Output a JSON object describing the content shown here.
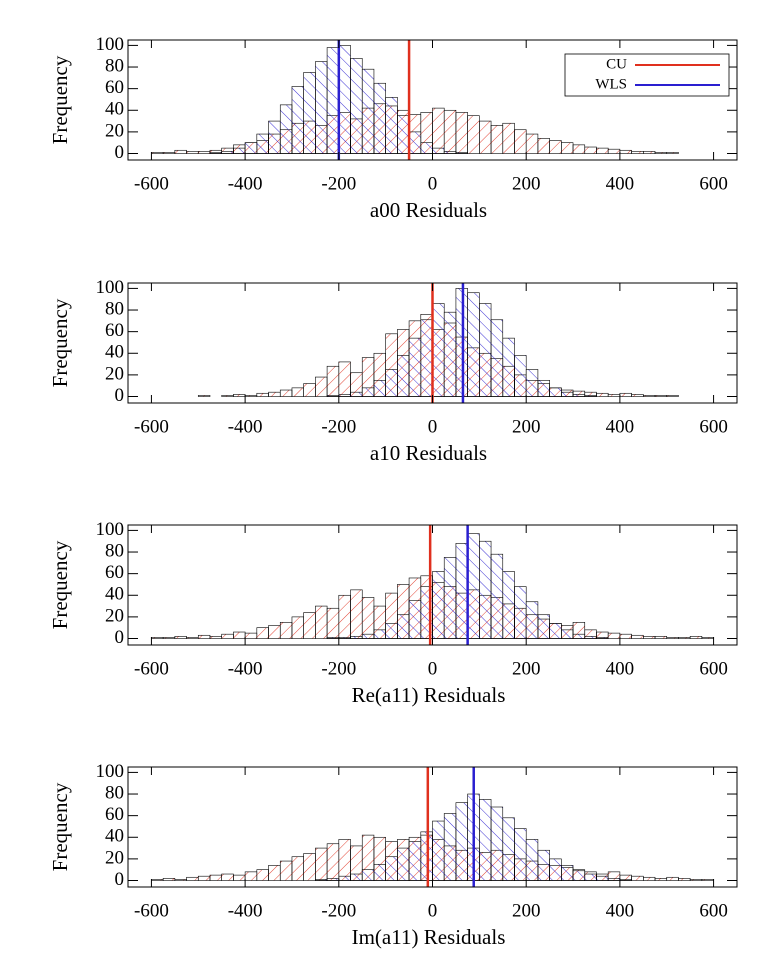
{
  "chart_data": [
    {
      "type": "histogram",
      "xlabel": "a00 Residuals",
      "ylabel": "Frequency",
      "bins": [
        -650,
        -625,
        -600,
        -575,
        -550,
        -525,
        -500,
        -475,
        -450,
        -425,
        -400,
        -375,
        -350,
        -325,
        -300,
        -275,
        -250,
        -225,
        -200,
        -175,
        -150,
        -125,
        -100,
        -75,
        -50,
        -25,
        0,
        25,
        50,
        75,
        100,
        125,
        150,
        175,
        200,
        225,
        250,
        275,
        300,
        325,
        350,
        375,
        400,
        425,
        450,
        475,
        500,
        525,
        550,
        575,
        600,
        625,
        650
      ],
      "series": [
        {
          "name": "CU",
          "color": "#e0301e",
          "mean": -50,
          "values": [
            0,
            0,
            1,
            1,
            3,
            2,
            2,
            3,
            5,
            8,
            10,
            12,
            18,
            22,
            28,
            30,
            26,
            35,
            38,
            32,
            42,
            46,
            44,
            40,
            36,
            38,
            42,
            40,
            38,
            35,
            30,
            26,
            28,
            22,
            18,
            14,
            12,
            10,
            8,
            6,
            5,
            4,
            3,
            2,
            2,
            1,
            1,
            0,
            0,
            0,
            0,
            0
          ]
        },
        {
          "name": "WLS",
          "color": "#2a1fd0",
          "mean": -200,
          "values": [
            0,
            0,
            0,
            0,
            0,
            0,
            0,
            1,
            2,
            5,
            10,
            18,
            30,
            45,
            62,
            75,
            85,
            98,
            100,
            88,
            78,
            65,
            52,
            35,
            20,
            10,
            5,
            2,
            1,
            0,
            0,
            0,
            0,
            0,
            0,
            0,
            0,
            0,
            0,
            0,
            0,
            0,
            0,
            0,
            0,
            0,
            0,
            0,
            0,
            0,
            0,
            0
          ]
        }
      ],
      "legend": "upper right",
      "xlim": [
        -650,
        650
      ],
      "ylim": [
        -6,
        105
      ],
      "xticks": [
        -600,
        -400,
        -200,
        0,
        200,
        400,
        600
      ],
      "yticks": [
        0,
        20,
        40,
        60,
        80,
        100
      ]
    },
    {
      "type": "histogram",
      "xlabel": "a10 Residuals",
      "ylabel": "Frequency",
      "bins": [
        -650,
        -625,
        -600,
        -575,
        -550,
        -525,
        -500,
        -475,
        -450,
        -425,
        -400,
        -375,
        -350,
        -325,
        -300,
        -275,
        -250,
        -225,
        -200,
        -175,
        -150,
        -125,
        -100,
        -75,
        -50,
        -25,
        0,
        25,
        50,
        75,
        100,
        125,
        150,
        175,
        200,
        225,
        250,
        275,
        300,
        325,
        350,
        375,
        400,
        425,
        450,
        475,
        500,
        525,
        550,
        575,
        600,
        625,
        650
      ],
      "series": [
        {
          "color": "#e0301e",
          "mean": 0,
          "values": [
            0,
            0,
            0,
            0,
            0,
            0,
            1,
            0,
            1,
            2,
            1,
            3,
            4,
            6,
            8,
            12,
            18,
            28,
            32,
            22,
            36,
            40,
            58,
            62,
            70,
            76,
            62,
            68,
            55,
            45,
            40,
            35,
            28,
            20,
            15,
            12,
            8,
            6,
            5,
            4,
            3,
            2,
            3,
            2,
            1,
            1,
            1,
            0,
            0,
            0,
            0,
            0
          ]
        },
        {
          "color": "#2a1fd0",
          "mean": 65,
          "values": [
            0,
            0,
            0,
            0,
            0,
            0,
            0,
            0,
            0,
            0,
            0,
            0,
            0,
            0,
            0,
            0,
            0,
            1,
            2,
            4,
            8,
            15,
            25,
            38,
            54,
            71,
            86,
            78,
            100,
            96,
            86,
            71,
            54,
            38,
            25,
            15,
            8,
            4,
            2,
            1,
            0,
            0,
            0,
            0,
            0,
            0,
            0,
            0,
            0,
            0,
            0,
            0
          ]
        }
      ],
      "xlim": [
        -650,
        650
      ],
      "ylim": [
        -6,
        105
      ],
      "xticks": [
        -600,
        -400,
        -200,
        0,
        200,
        400,
        600
      ],
      "yticks": [
        0,
        20,
        40,
        60,
        80,
        100
      ]
    },
    {
      "type": "histogram",
      "xlabel": "Re(a11) Residuals",
      "ylabel": "Frequency",
      "bins": [
        -650,
        -625,
        -600,
        -575,
        -550,
        -525,
        -500,
        -475,
        -450,
        -425,
        -400,
        -375,
        -350,
        -325,
        -300,
        -275,
        -250,
        -225,
        -200,
        -175,
        -150,
        -125,
        -100,
        -75,
        -50,
        -25,
        0,
        25,
        50,
        75,
        100,
        125,
        150,
        175,
        200,
        225,
        250,
        275,
        300,
        325,
        350,
        375,
        400,
        425,
        450,
        475,
        500,
        525,
        550,
        575,
        600,
        625,
        650
      ],
      "series": [
        {
          "color": "#e0301e",
          "mean": -5,
          "values": [
            0,
            0,
            1,
            1,
            2,
            1,
            3,
            2,
            4,
            6,
            5,
            10,
            12,
            15,
            20,
            24,
            30,
            28,
            40,
            45,
            38,
            30,
            42,
            50,
            56,
            58,
            52,
            48,
            42,
            45,
            40,
            38,
            32,
            28,
            22,
            18,
            14,
            12,
            15,
            8,
            6,
            5,
            4,
            3,
            2,
            2,
            1,
            1,
            2,
            1,
            0,
            0
          ]
        },
        {
          "color": "#2a1fd0",
          "mean": 75,
          "values": [
            0,
            0,
            0,
            0,
            0,
            0,
            0,
            0,
            0,
            0,
            0,
            0,
            0,
            0,
            0,
            0,
            0,
            1,
            1,
            2,
            4,
            8,
            14,
            22,
            35,
            48,
            62,
            75,
            88,
            97,
            90,
            78,
            62,
            48,
            34,
            22,
            14,
            8,
            4,
            2,
            1,
            0,
            0,
            0,
            0,
            0,
            0,
            0,
            0,
            0,
            0,
            0
          ]
        }
      ],
      "xlim": [
        -650,
        650
      ],
      "ylim": [
        -6,
        105
      ],
      "xticks": [
        -600,
        -400,
        -200,
        0,
        200,
        400,
        600
      ],
      "yticks": [
        0,
        20,
        40,
        60,
        80,
        100
      ]
    },
    {
      "type": "histogram",
      "xlabel": "Im(a11) Residuals",
      "ylabel": "Frequency",
      "bins": [
        -650,
        -625,
        -600,
        -575,
        -550,
        -525,
        -500,
        -475,
        -450,
        -425,
        -400,
        -375,
        -350,
        -325,
        -300,
        -275,
        -250,
        -225,
        -200,
        -175,
        -150,
        -125,
        -100,
        -75,
        -50,
        -25,
        0,
        25,
        50,
        75,
        100,
        125,
        150,
        175,
        200,
        225,
        250,
        275,
        300,
        325,
        350,
        375,
        400,
        425,
        450,
        475,
        500,
        525,
        550,
        575,
        600,
        625,
        650
      ],
      "series": [
        {
          "color": "#e0301e",
          "mean": -10,
          "values": [
            0,
            0,
            1,
            2,
            1,
            3,
            4,
            5,
            6,
            5,
            8,
            10,
            14,
            18,
            22,
            25,
            30,
            34,
            38,
            32,
            42,
            40,
            36,
            38,
            40,
            42,
            38,
            32,
            28,
            30,
            26,
            28,
            24,
            20,
            18,
            15,
            14,
            12,
            10,
            8,
            6,
            8,
            5,
            4,
            3,
            2,
            3,
            2,
            1,
            1,
            0,
            0
          ]
        },
        {
          "color": "#2a1fd0",
          "mean": 88,
          "values": [
            0,
            0,
            0,
            0,
            0,
            0,
            0,
            0,
            0,
            0,
            0,
            0,
            0,
            0,
            0,
            0,
            1,
            2,
            4,
            6,
            10,
            15,
            22,
            30,
            36,
            45,
            55,
            62,
            72,
            80,
            75,
            68,
            58,
            48,
            38,
            28,
            20,
            14,
            9,
            6,
            4,
            2,
            1,
            0,
            0,
            0,
            0,
            0,
            0,
            0,
            0,
            0
          ]
        }
      ],
      "xlim": [
        -650,
        650
      ],
      "ylim": [
        -6,
        105
      ],
      "xticks": [
        -600,
        -400,
        -200,
        0,
        200,
        400,
        600
      ],
      "yticks": [
        0,
        20,
        40,
        60,
        80,
        100
      ]
    }
  ]
}
